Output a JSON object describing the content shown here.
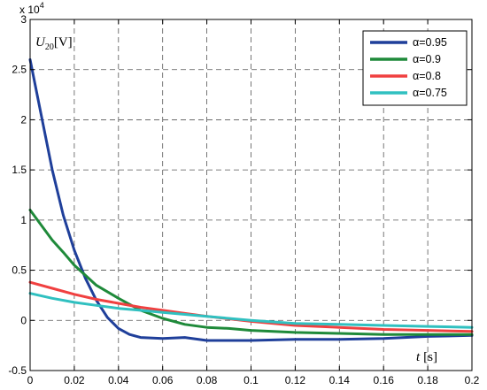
{
  "chart_data": {
    "type": "line",
    "x_multiplier_label": "",
    "y_multiplier": {
      "base": "x 10",
      "exponent": "4"
    },
    "ylabel": {
      "symbol": "U",
      "subscript": "20",
      "unit": "[V]"
    },
    "xlabel": {
      "symbol": "t",
      "unit": "[s]"
    },
    "xlim": [
      0,
      0.2
    ],
    "ylim": [
      -0.5,
      3
    ],
    "x_ticks": [
      0,
      0.02,
      0.04,
      0.06,
      0.08,
      0.1,
      0.12,
      0.14,
      0.16,
      0.18,
      0.2
    ],
    "x_tick_labels": [
      "0",
      "0.02",
      "0.04",
      "0.06",
      "0.08",
      "0.1",
      "0.12",
      "0.14",
      "0.16",
      "0.18",
      "0.2"
    ],
    "y_ticks": [
      -0.5,
      0,
      0.5,
      1,
      1.5,
      2,
      2.5,
      3
    ],
    "y_tick_labels": [
      "-0.5",
      "0",
      "0.5",
      "1",
      "1.5",
      "2",
      "2.5",
      "3"
    ],
    "grid": true,
    "legend_position": "top-right",
    "series": [
      {
        "name": "α=0.95",
        "color": "#1f3f9a",
        "x": [
          0,
          0.005,
          0.01,
          0.015,
          0.02,
          0.025,
          0.03,
          0.035,
          0.04,
          0.045,
          0.05,
          0.06,
          0.07,
          0.08,
          0.09,
          0.1,
          0.12,
          0.14,
          0.16,
          0.18,
          0.2
        ],
        "y": [
          2.6,
          2.05,
          1.5,
          1.05,
          0.7,
          0.42,
          0.2,
          0.03,
          -0.08,
          -0.14,
          -0.17,
          -0.18,
          -0.17,
          -0.2,
          -0.2,
          -0.2,
          -0.19,
          -0.19,
          -0.18,
          -0.16,
          -0.15
        ]
      },
      {
        "name": "α=0.9",
        "color": "#1f8a3a",
        "x": [
          0,
          0.005,
          0.01,
          0.015,
          0.02,
          0.025,
          0.03,
          0.04,
          0.05,
          0.06,
          0.07,
          0.08,
          0.09,
          0.1,
          0.12,
          0.14,
          0.16,
          0.18,
          0.2
        ],
        "y": [
          1.1,
          0.95,
          0.8,
          0.68,
          0.55,
          0.45,
          0.35,
          0.22,
          0.1,
          0.02,
          -0.04,
          -0.07,
          -0.08,
          -0.1,
          -0.12,
          -0.13,
          -0.14,
          -0.14,
          -0.14
        ]
      },
      {
        "name": "α=0.8",
        "color": "#f04040",
        "x": [
          0,
          0.01,
          0.02,
          0.03,
          0.04,
          0.05,
          0.06,
          0.07,
          0.08,
          0.1,
          0.12,
          0.14,
          0.16,
          0.18,
          0.2
        ],
        "y": [
          0.38,
          0.32,
          0.26,
          0.21,
          0.17,
          0.13,
          0.1,
          0.07,
          0.04,
          -0.01,
          -0.05,
          -0.07,
          -0.09,
          -0.1,
          -0.11
        ]
      },
      {
        "name": "α=0.75",
        "color": "#30c0c0",
        "x": [
          0,
          0.01,
          0.02,
          0.03,
          0.04,
          0.05,
          0.06,
          0.07,
          0.08,
          0.1,
          0.12,
          0.14,
          0.16,
          0.18,
          0.2
        ],
        "y": [
          0.27,
          0.22,
          0.18,
          0.15,
          0.12,
          0.1,
          0.08,
          0.06,
          0.04,
          0.0,
          -0.03,
          -0.04,
          -0.05,
          -0.06,
          -0.07
        ]
      }
    ]
  }
}
